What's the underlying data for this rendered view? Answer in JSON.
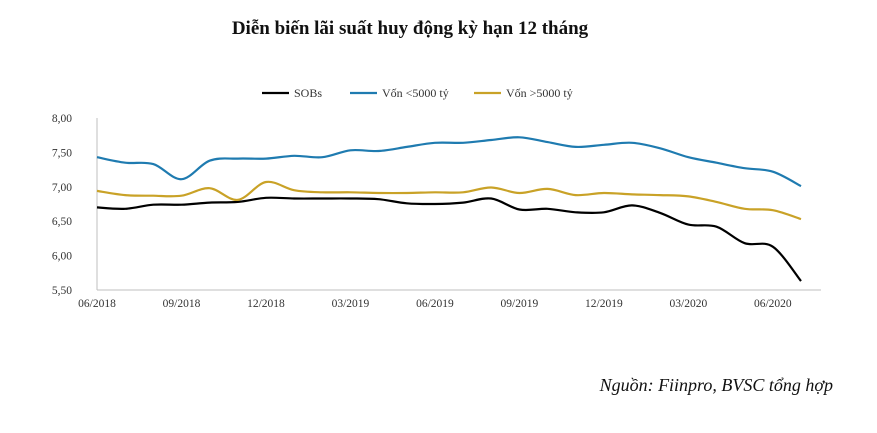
{
  "title": "Diễn biến lãi suất huy động kỳ hạn 12 tháng",
  "source": "Nguồn: Fiinpro, BVSC tổng hợp",
  "chart_data": {
    "type": "line",
    "title": "Diễn biến lãi suất huy động kỳ hạn 12 tháng",
    "xlabel": "",
    "ylabel": "",
    "ylim": [
      5.5,
      8.0
    ],
    "yticks": [
      "8,00",
      "7,50",
      "7,00",
      "6,50",
      "6,00",
      "5,50"
    ],
    "ytick_values": [
      8.0,
      7.5,
      7.0,
      6.5,
      6.0,
      5.5
    ],
    "x_ticks": [
      "06/2018",
      "09/2018",
      "12/2018",
      "03/2019",
      "06/2019",
      "09/2019",
      "12/2019",
      "03/2020",
      "06/2020"
    ],
    "x": [
      "06/2018",
      "07/2018",
      "08/2018",
      "09/2018",
      "10/2018",
      "11/2018",
      "12/2018",
      "01/2019",
      "02/2019",
      "03/2019",
      "04/2019",
      "05/2019",
      "06/2019",
      "07/2019",
      "08/2019",
      "09/2019",
      "10/2019",
      "11/2019",
      "12/2019",
      "01/2020",
      "02/2020",
      "03/2020",
      "04/2020",
      "05/2020",
      "06/2020",
      "07/2020"
    ],
    "legend_position": "top-center",
    "grid": false,
    "series": [
      {
        "name": "SOBs",
        "color": "#000000",
        "values": [
          6.7,
          6.68,
          6.74,
          6.74,
          6.77,
          6.78,
          6.84,
          6.83,
          6.83,
          6.83,
          6.82,
          6.76,
          6.75,
          6.77,
          6.83,
          6.67,
          6.68,
          6.63,
          6.63,
          6.73,
          6.62,
          6.45,
          6.42,
          6.18,
          6.13,
          5.63
        ]
      },
      {
        "name": "Vốn <5000 tỷ",
        "color": "#1F7BB0",
        "values": [
          7.43,
          7.35,
          7.33,
          7.11,
          7.38,
          7.41,
          7.41,
          7.45,
          7.43,
          7.53,
          7.52,
          7.58,
          7.64,
          7.64,
          7.68,
          7.72,
          7.65,
          7.58,
          7.61,
          7.64,
          7.56,
          7.43,
          7.35,
          7.27,
          7.22,
          7.01
        ]
      },
      {
        "name": "Vốn >5000 tỷ",
        "color": "#C9A227",
        "values": [
          6.94,
          6.88,
          6.87,
          6.87,
          6.98,
          6.81,
          7.07,
          6.95,
          6.92,
          6.92,
          6.91,
          6.91,
          6.92,
          6.92,
          6.99,
          6.91,
          6.97,
          6.88,
          6.91,
          6.89,
          6.88,
          6.86,
          6.78,
          6.68,
          6.66,
          6.53
        ]
      }
    ]
  }
}
